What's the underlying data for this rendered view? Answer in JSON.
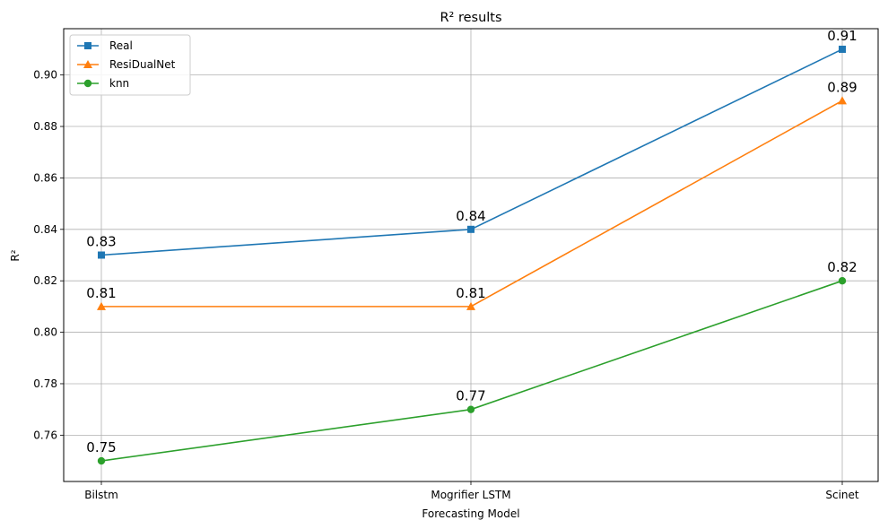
{
  "chart_data": {
    "type": "line",
    "title": "R² results",
    "xlabel": "Forecasting Model",
    "ylabel": "R²",
    "categories": [
      "Bilstm",
      "Mogrifier LSTM",
      "Scinet"
    ],
    "ylim": [
      0.742,
      0.918
    ],
    "yticks": [
      "0.76",
      "0.78",
      "0.80",
      "0.82",
      "0.84",
      "0.86",
      "0.88",
      "0.90"
    ],
    "grid": true,
    "legend_position": "top-left",
    "series": [
      {
        "name": "Real",
        "values": [
          0.83,
          0.84,
          0.91
        ],
        "labels": [
          "0.83",
          "0.84",
          "0.91"
        ],
        "color": "#1f77b4",
        "marker": "square"
      },
      {
        "name": "ResiDualNet",
        "values": [
          0.81,
          0.81,
          0.89
        ],
        "labels": [
          "0.81",
          "0.81",
          "0.89"
        ],
        "color": "#ff7f0e",
        "marker": "triangle"
      },
      {
        "name": "knn",
        "values": [
          0.75,
          0.77,
          0.82
        ],
        "labels": [
          "0.75",
          "0.77",
          "0.82"
        ],
        "color": "#2ca02c",
        "marker": "circle"
      }
    ]
  }
}
